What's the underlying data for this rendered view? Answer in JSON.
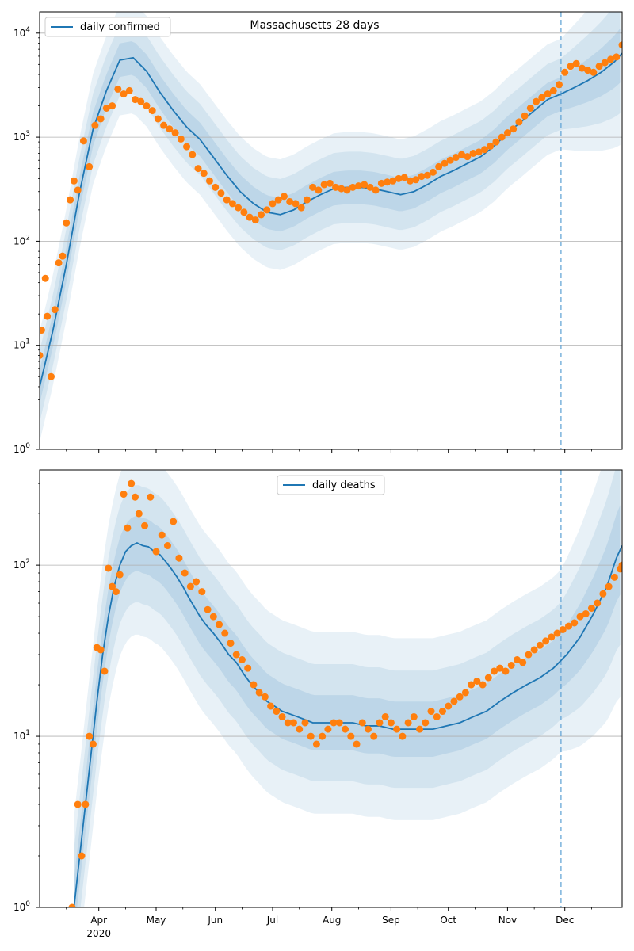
{
  "chart_data": [
    {
      "type": "line",
      "title": "Massachusetts 28 days",
      "ylog": true,
      "ylim": [
        1,
        16000
      ],
      "xlim": [
        "2020-03-01",
        "2020-12-31"
      ],
      "forecast_start": "2020-11-29",
      "grid": "y-major",
      "legend": {
        "position": "top-left",
        "entries": [
          "daily confirmed"
        ]
      },
      "colors": {
        "line": "#1f77b4",
        "points": "#ff7f0e",
        "band": "#1f77b4",
        "grid": "#b0b0b0"
      },
      "y_ticks": [
        {
          "value": 1,
          "base": "10",
          "exp": "0"
        },
        {
          "value": 10,
          "base": "10",
          "exp": "1"
        },
        {
          "value": 100,
          "base": "10",
          "exp": "2"
        },
        {
          "value": 1000,
          "base": "10",
          "exp": "3"
        },
        {
          "value": 10000,
          "base": "10",
          "exp": "4"
        }
      ],
      "series": [
        {
          "name": "daily confirmed",
          "kind": "line",
          "x": [
            "2020-03-01",
            "2020-03-08",
            "2020-03-15",
            "2020-03-22",
            "2020-03-29",
            "2020-04-05",
            "2020-04-12",
            "2020-04-19",
            "2020-04-26",
            "2020-05-03",
            "2020-05-10",
            "2020-05-17",
            "2020-05-24",
            "2020-05-31",
            "2020-06-07",
            "2020-06-14",
            "2020-06-21",
            "2020-06-28",
            "2020-07-05",
            "2020-07-12",
            "2020-07-19",
            "2020-07-26",
            "2020-08-02",
            "2020-08-09",
            "2020-08-16",
            "2020-08-23",
            "2020-08-30",
            "2020-09-06",
            "2020-09-13",
            "2020-09-20",
            "2020-09-27",
            "2020-10-04",
            "2020-10-11",
            "2020-10-18",
            "2020-10-25",
            "2020-11-01",
            "2020-11-08",
            "2020-11-15",
            "2020-11-22",
            "2020-11-29",
            "2020-12-06",
            "2020-12-13",
            "2020-12-20",
            "2020-12-27",
            "2020-12-31"
          ],
          "y": [
            4,
            14,
            60,
            300,
            1200,
            2800,
            5500,
            5800,
            4300,
            2700,
            1800,
            1250,
            950,
            640,
            430,
            300,
            230,
            190,
            180,
            200,
            240,
            280,
            320,
            330,
            330,
            320,
            300,
            280,
            300,
            350,
            420,
            480,
            560,
            650,
            820,
            1100,
            1400,
            1800,
            2300,
            2600,
            3000,
            3500,
            4200,
            5300,
            6400
          ]
        },
        {
          "name": "",
          "kind": "points",
          "x": [
            "2020-03-01",
            "2020-03-02",
            "2020-03-04",
            "2020-03-05",
            "2020-03-07",
            "2020-03-09",
            "2020-03-11",
            "2020-03-13",
            "2020-03-15",
            "2020-03-17",
            "2020-03-19",
            "2020-03-21",
            "2020-03-24",
            "2020-03-27",
            "2020-03-30",
            "2020-04-02",
            "2020-04-05",
            "2020-04-08",
            "2020-04-11",
            "2020-04-14",
            "2020-04-17",
            "2020-04-20",
            "2020-04-23",
            "2020-04-26",
            "2020-04-29",
            "2020-05-02",
            "2020-05-05",
            "2020-05-08",
            "2020-05-11",
            "2020-05-14",
            "2020-05-17",
            "2020-05-20",
            "2020-05-23",
            "2020-05-26",
            "2020-05-29",
            "2020-06-01",
            "2020-06-04",
            "2020-06-07",
            "2020-06-10",
            "2020-06-13",
            "2020-06-16",
            "2020-06-19",
            "2020-06-22",
            "2020-06-25",
            "2020-06-28",
            "2020-07-01",
            "2020-07-04",
            "2020-07-07",
            "2020-07-10",
            "2020-07-13",
            "2020-07-16",
            "2020-07-19",
            "2020-07-22",
            "2020-07-25",
            "2020-07-28",
            "2020-07-31",
            "2020-08-03",
            "2020-08-06",
            "2020-08-09",
            "2020-08-12",
            "2020-08-15",
            "2020-08-18",
            "2020-08-21",
            "2020-08-24",
            "2020-08-27",
            "2020-08-30",
            "2020-09-02",
            "2020-09-05",
            "2020-09-08",
            "2020-09-11",
            "2020-09-14",
            "2020-09-17",
            "2020-09-20",
            "2020-09-23",
            "2020-09-26",
            "2020-09-29",
            "2020-10-02",
            "2020-10-05",
            "2020-10-08",
            "2020-10-11",
            "2020-10-14",
            "2020-10-17",
            "2020-10-20",
            "2020-10-23",
            "2020-10-26",
            "2020-10-29",
            "2020-11-01",
            "2020-11-04",
            "2020-11-07",
            "2020-11-10",
            "2020-11-13",
            "2020-11-16",
            "2020-11-19",
            "2020-11-22",
            "2020-11-25",
            "2020-11-28",
            "2020-12-01",
            "2020-12-04",
            "2020-12-07",
            "2020-12-10",
            "2020-12-13",
            "2020-12-16",
            "2020-12-19",
            "2020-12-22",
            "2020-12-25",
            "2020-12-28",
            "2020-12-31"
          ],
          "y": [
            8,
            14,
            44,
            19,
            5,
            22,
            62,
            72,
            150,
            250,
            380,
            310,
            920,
            520,
            1300,
            1500,
            1900,
            2000,
            2900,
            2600,
            2800,
            2300,
            2200,
            2000,
            1800,
            1500,
            1300,
            1200,
            1100,
            960,
            810,
            680,
            500,
            450,
            380,
            330,
            290,
            250,
            230,
            210,
            190,
            170,
            160,
            180,
            200,
            230,
            250,
            270,
            240,
            230,
            210,
            250,
            330,
            310,
            350,
            360,
            330,
            320,
            310,
            330,
            340,
            350,
            330,
            310,
            360,
            370,
            380,
            400,
            410,
            380,
            390,
            420,
            430,
            460,
            520,
            560,
            600,
            640,
            680,
            650,
            700,
            720,
            760,
            820,
            900,
            1000,
            1100,
            1200,
            1400,
            1600,
            1900,
            2200,
            2400,
            2600,
            2800,
            3200,
            4200,
            4800,
            5100,
            4600,
            4400,
            4200,
            4800,
            5200,
            5600,
            5900,
            7700
          ]
        }
      ]
    },
    {
      "type": "line",
      "title": "",
      "ylog": true,
      "ylim": [
        1,
        360
      ],
      "xlim": [
        "2020-03-01",
        "2020-12-31"
      ],
      "forecast_start": "2020-11-29",
      "grid": "y-major",
      "legend": {
        "position": "top-center",
        "entries": [
          "daily deaths"
        ]
      },
      "colors": {
        "line": "#1f77b4",
        "points": "#ff7f0e",
        "band": "#1f77b4",
        "grid": "#b0b0b0"
      },
      "y_ticks": [
        {
          "value": 1,
          "base": "10",
          "exp": "0"
        },
        {
          "value": 10,
          "base": "10",
          "exp": "1"
        },
        {
          "value": 100,
          "base": "10",
          "exp": "2"
        }
      ],
      "x_ticks": [
        {
          "date": "2020-04-01",
          "label": "Apr",
          "sub": "2020"
        },
        {
          "date": "2020-05-01",
          "label": "May",
          "sub": ""
        },
        {
          "date": "2020-06-01",
          "label": "Jun",
          "sub": ""
        },
        {
          "date": "2020-07-01",
          "label": "Jul",
          "sub": ""
        },
        {
          "date": "2020-08-01",
          "label": "Aug",
          "sub": ""
        },
        {
          "date": "2020-09-01",
          "label": "Sep",
          "sub": ""
        },
        {
          "date": "2020-10-01",
          "label": "Oct",
          "sub": ""
        },
        {
          "date": "2020-11-01",
          "label": "Nov",
          "sub": ""
        },
        {
          "date": "2020-12-01",
          "label": "Dec",
          "sub": ""
        }
      ],
      "series": [
        {
          "name": "daily deaths",
          "kind": "line",
          "x": [
            "2020-03-19",
            "2020-03-22",
            "2020-03-25",
            "2020-03-28",
            "2020-03-31",
            "2020-04-03",
            "2020-04-06",
            "2020-04-09",
            "2020-04-12",
            "2020-04-15",
            "2020-04-18",
            "2020-04-21",
            "2020-04-24",
            "2020-04-27",
            "2020-04-30",
            "2020-05-03",
            "2020-05-06",
            "2020-05-09",
            "2020-05-12",
            "2020-05-15",
            "2020-05-18",
            "2020-05-21",
            "2020-05-24",
            "2020-05-27",
            "2020-05-31",
            "2020-06-04",
            "2020-06-08",
            "2020-06-12",
            "2020-06-16",
            "2020-06-20",
            "2020-06-24",
            "2020-06-28",
            "2020-07-02",
            "2020-07-06",
            "2020-07-10",
            "2020-07-14",
            "2020-07-18",
            "2020-07-22",
            "2020-07-26",
            "2020-07-30",
            "2020-08-05",
            "2020-08-12",
            "2020-08-19",
            "2020-08-26",
            "2020-09-02",
            "2020-09-09",
            "2020-09-16",
            "2020-09-23",
            "2020-09-30",
            "2020-10-07",
            "2020-10-14",
            "2020-10-21",
            "2020-10-28",
            "2020-11-04",
            "2020-11-11",
            "2020-11-18",
            "2020-11-25",
            "2020-12-02",
            "2020-12-09",
            "2020-12-16",
            "2020-12-23",
            "2020-12-28",
            "2020-12-31"
          ],
          "y": [
            1,
            2,
            4,
            8,
            16,
            30,
            50,
            75,
            100,
            120,
            130,
            135,
            130,
            128,
            120,
            115,
            105,
            95,
            85,
            75,
            65,
            57,
            50,
            45,
            40,
            35,
            30,
            27,
            23,
            20,
            18,
            16,
            15,
            14,
            13.5,
            13,
            12.5,
            12,
            12,
            12,
            12,
            12,
            11.5,
            11.5,
            11,
            11,
            11,
            11,
            11.5,
            12,
            13,
            14,
            16,
            18,
            20,
            22,
            25,
            30,
            38,
            52,
            75,
            110,
            130
          ]
        },
        {
          "name": "",
          "kind": "points",
          "x": [
            "2020-03-18",
            "2020-03-21",
            "2020-03-23",
            "2020-03-25",
            "2020-03-27",
            "2020-03-29",
            "2020-03-31",
            "2020-04-02",
            "2020-04-04",
            "2020-04-06",
            "2020-04-08",
            "2020-04-10",
            "2020-04-12",
            "2020-04-14",
            "2020-04-16",
            "2020-04-18",
            "2020-04-20",
            "2020-04-22",
            "2020-04-25",
            "2020-04-28",
            "2020-05-01",
            "2020-05-04",
            "2020-05-07",
            "2020-05-10",
            "2020-05-13",
            "2020-05-16",
            "2020-05-19",
            "2020-05-22",
            "2020-05-25",
            "2020-05-28",
            "2020-05-31",
            "2020-06-03",
            "2020-06-06",
            "2020-06-09",
            "2020-06-12",
            "2020-06-15",
            "2020-06-18",
            "2020-06-21",
            "2020-06-24",
            "2020-06-27",
            "2020-06-30",
            "2020-07-03",
            "2020-07-06",
            "2020-07-09",
            "2020-07-12",
            "2020-07-15",
            "2020-07-18",
            "2020-07-21",
            "2020-07-24",
            "2020-07-27",
            "2020-07-30",
            "2020-08-02",
            "2020-08-05",
            "2020-08-08",
            "2020-08-11",
            "2020-08-14",
            "2020-08-17",
            "2020-08-20",
            "2020-08-23",
            "2020-08-26",
            "2020-08-29",
            "2020-09-01",
            "2020-09-04",
            "2020-09-07",
            "2020-09-10",
            "2020-09-13",
            "2020-09-16",
            "2020-09-19",
            "2020-09-22",
            "2020-09-25",
            "2020-09-28",
            "2020-10-01",
            "2020-10-04",
            "2020-10-07",
            "2020-10-10",
            "2020-10-13",
            "2020-10-16",
            "2020-10-19",
            "2020-10-22",
            "2020-10-25",
            "2020-10-28",
            "2020-10-31",
            "2020-11-03",
            "2020-11-06",
            "2020-11-09",
            "2020-11-12",
            "2020-11-15",
            "2020-11-18",
            "2020-11-21",
            "2020-11-24",
            "2020-11-27",
            "2020-11-30",
            "2020-12-03",
            "2020-12-06",
            "2020-12-09",
            "2020-12-12",
            "2020-12-15",
            "2020-12-18",
            "2020-12-21",
            "2020-12-24",
            "2020-12-27",
            "2020-12-30",
            "2020-12-31"
          ],
          "y": [
            1,
            4,
            2,
            4,
            10,
            9,
            33,
            32,
            24,
            96,
            75,
            70,
            88,
            260,
            165,
            300,
            250,
            200,
            170,
            250,
            120,
            150,
            130,
            180,
            110,
            90,
            75,
            80,
            70,
            55,
            50,
            45,
            40,
            35,
            30,
            28,
            25,
            20,
            18,
            17,
            15,
            14,
            13,
            12,
            12,
            11,
            12,
            10,
            9,
            10,
            11,
            12,
            12,
            11,
            10,
            9,
            12,
            11,
            10,
            12,
            13,
            12,
            11,
            10,
            12,
            13,
            11,
            12,
            14,
            13,
            14,
            15,
            16,
            17,
            18,
            20,
            21,
            20,
            22,
            24,
            25,
            24,
            26,
            28,
            27,
            30,
            32,
            34,
            36,
            38,
            40,
            42,
            44,
            46,
            50,
            52,
            56,
            60,
            68,
            75,
            85,
            95,
            100
          ]
        }
      ]
    }
  ]
}
